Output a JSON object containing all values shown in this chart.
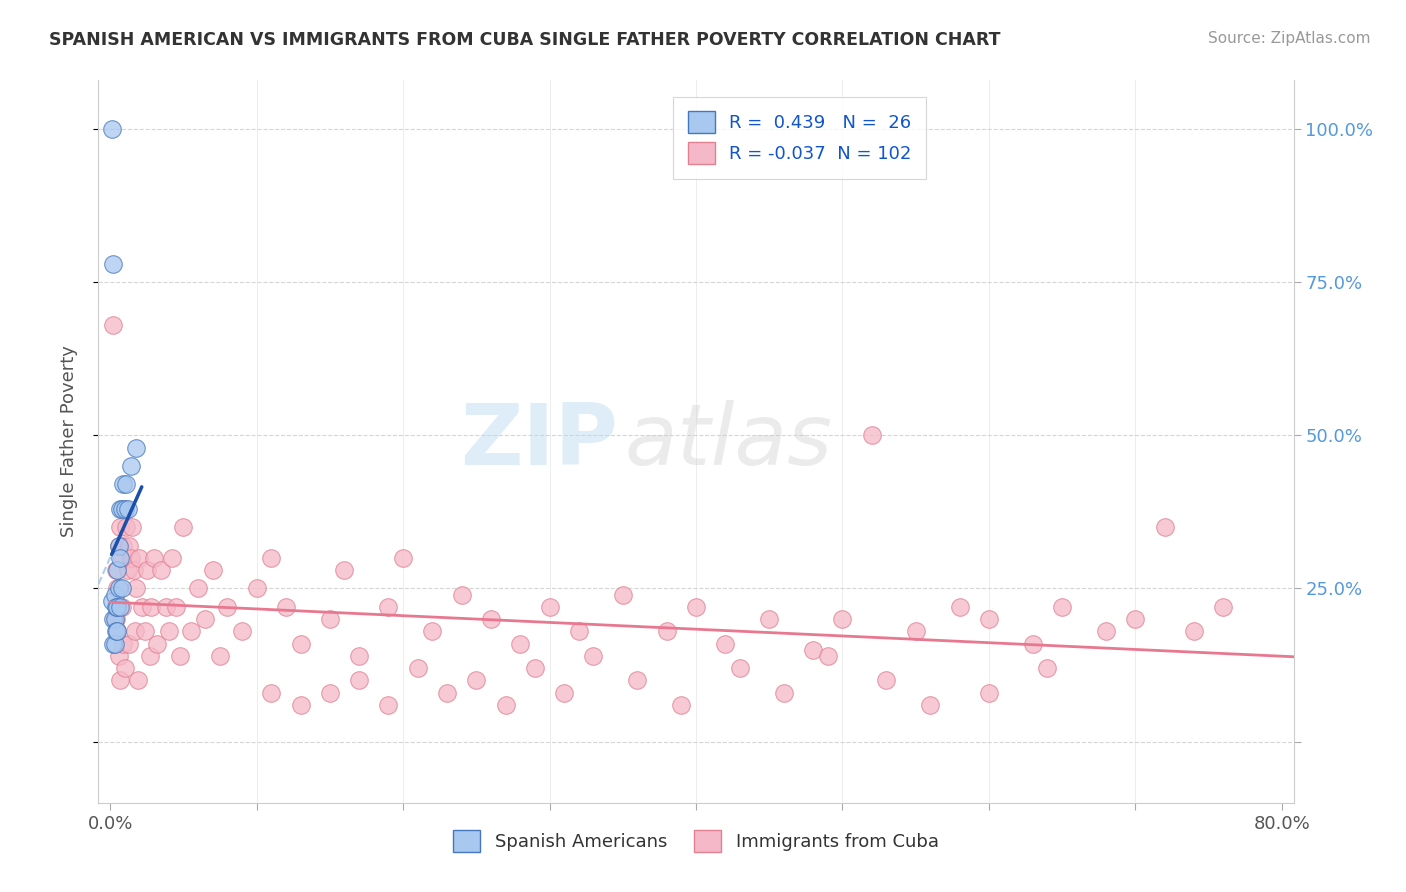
{
  "title": "SPANISH AMERICAN VS IMMIGRANTS FROM CUBA SINGLE FATHER POVERTY CORRELATION CHART",
  "source": "Source: ZipAtlas.com",
  "ylabel": "Single Father Poverty",
  "xlim": [
    -0.008,
    0.808
  ],
  "ylim": [
    -0.1,
    1.08
  ],
  "blue_R": 0.439,
  "blue_N": 26,
  "pink_R": -0.037,
  "pink_N": 102,
  "legend_labels": [
    "Spanish Americans",
    "Immigrants from Cuba"
  ],
  "blue_color": "#A8C8F0",
  "pink_color": "#F5B8C8",
  "blue_edge_color": "#4477BB",
  "pink_edge_color": "#E08090",
  "blue_line_color": "#1A4FAA",
  "pink_line_color": "#E87890",
  "watermark_zip": "ZIP",
  "watermark_atlas": "atlas",
  "grid_color": "#CCCCCC",
  "right_tick_color": "#5599DD",
  "ytick_positions": [
    0.0,
    0.25,
    0.5,
    0.75,
    1.0
  ],
  "ytick_labels_right": [
    "",
    "25.0%",
    "50.0%",
    "75.0%",
    "100.0%"
  ],
  "xtick_positions": [
    0.0,
    0.1,
    0.2,
    0.3,
    0.4,
    0.5,
    0.6,
    0.7,
    0.8
  ],
  "blue_x": [
    0.001,
    0.001,
    0.002,
    0.002,
    0.002,
    0.003,
    0.003,
    0.003,
    0.004,
    0.004,
    0.005,
    0.005,
    0.005,
    0.006,
    0.006,
    0.007,
    0.007,
    0.007,
    0.008,
    0.008,
    0.009,
    0.01,
    0.011,
    0.012,
    0.014,
    0.018
  ],
  "blue_y": [
    1.0,
    0.23,
    0.78,
    0.2,
    0.16,
    0.24,
    0.2,
    0.16,
    0.22,
    0.18,
    0.28,
    0.22,
    0.18,
    0.32,
    0.25,
    0.38,
    0.3,
    0.22,
    0.38,
    0.25,
    0.42,
    0.38,
    0.42,
    0.38,
    0.45,
    0.48
  ],
  "pink_x": [
    0.002,
    0.003,
    0.004,
    0.004,
    0.005,
    0.005,
    0.006,
    0.006,
    0.007,
    0.007,
    0.008,
    0.008,
    0.009,
    0.009,
    0.01,
    0.01,
    0.011,
    0.012,
    0.013,
    0.013,
    0.014,
    0.015,
    0.016,
    0.017,
    0.018,
    0.019,
    0.02,
    0.022,
    0.024,
    0.025,
    0.027,
    0.028,
    0.03,
    0.032,
    0.035,
    0.038,
    0.04,
    0.042,
    0.045,
    0.048,
    0.05,
    0.055,
    0.06,
    0.065,
    0.07,
    0.075,
    0.08,
    0.09,
    0.1,
    0.11,
    0.12,
    0.13,
    0.15,
    0.16,
    0.17,
    0.19,
    0.2,
    0.22,
    0.24,
    0.26,
    0.28,
    0.3,
    0.32,
    0.35,
    0.38,
    0.4,
    0.42,
    0.45,
    0.48,
    0.5,
    0.52,
    0.55,
    0.58,
    0.6,
    0.63,
    0.65,
    0.68,
    0.7,
    0.72,
    0.74,
    0.76,
    0.6,
    0.64,
    0.56,
    0.53,
    0.49,
    0.46,
    0.43,
    0.39,
    0.36,
    0.33,
    0.31,
    0.29,
    0.27,
    0.25,
    0.23,
    0.21,
    0.19,
    0.17,
    0.15,
    0.13,
    0.11
  ],
  "pink_y": [
    0.68,
    0.2,
    0.28,
    0.2,
    0.25,
    0.18,
    0.32,
    0.14,
    0.35,
    0.1,
    0.3,
    0.22,
    0.32,
    0.16,
    0.38,
    0.12,
    0.35,
    0.28,
    0.32,
    0.16,
    0.3,
    0.35,
    0.28,
    0.18,
    0.25,
    0.1,
    0.3,
    0.22,
    0.18,
    0.28,
    0.14,
    0.22,
    0.3,
    0.16,
    0.28,
    0.22,
    0.18,
    0.3,
    0.22,
    0.14,
    0.35,
    0.18,
    0.25,
    0.2,
    0.28,
    0.14,
    0.22,
    0.18,
    0.25,
    0.3,
    0.22,
    0.16,
    0.2,
    0.28,
    0.14,
    0.22,
    0.3,
    0.18,
    0.24,
    0.2,
    0.16,
    0.22,
    0.18,
    0.24,
    0.18,
    0.22,
    0.16,
    0.2,
    0.15,
    0.2,
    0.5,
    0.18,
    0.22,
    0.2,
    0.16,
    0.22,
    0.18,
    0.2,
    0.35,
    0.18,
    0.22,
    0.08,
    0.12,
    0.06,
    0.1,
    0.14,
    0.08,
    0.12,
    0.06,
    0.1,
    0.14,
    0.08,
    0.12,
    0.06,
    0.1,
    0.08,
    0.12,
    0.06,
    0.1,
    0.08,
    0.06,
    0.08
  ]
}
